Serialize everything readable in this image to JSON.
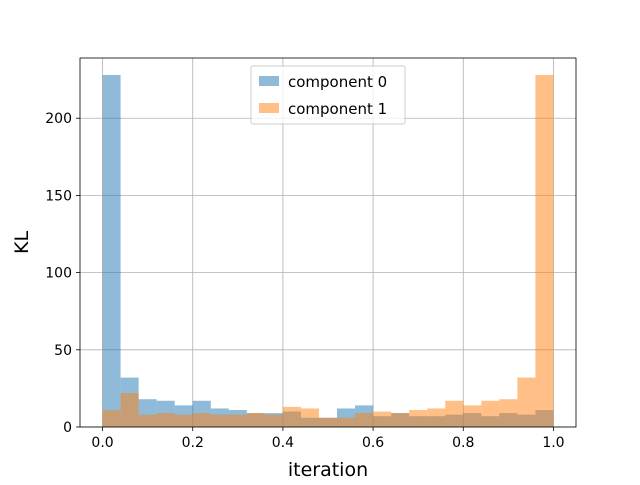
{
  "chart_data": {
    "type": "bar",
    "subtype": "overlapping histogram",
    "title": "",
    "xlabel": "iteration",
    "ylabel": "KL",
    "xlim": [
      -0.05,
      1.05
    ],
    "ylim": [
      0,
      239
    ],
    "xticks": [
      {
        "value": 0.0,
        "label": "0.0"
      },
      {
        "value": 0.2,
        "label": "0.2"
      },
      {
        "value": 0.4,
        "label": "0.4"
      },
      {
        "value": 0.6,
        "label": "0.6"
      },
      {
        "value": 0.8,
        "label": "0.8"
      },
      {
        "value": 1.0,
        "label": "1.0"
      }
    ],
    "yticks": [
      {
        "value": 0,
        "label": "0"
      },
      {
        "value": 50,
        "label": "50"
      },
      {
        "value": 100,
        "label": "100"
      },
      {
        "value": 150,
        "label": "150"
      },
      {
        "value": 200,
        "label": "200"
      }
    ],
    "grid": true,
    "legend_position": "top-center",
    "bin_edges": [
      0.0,
      0.04,
      0.08,
      0.12,
      0.16,
      0.2,
      0.24,
      0.28,
      0.32,
      0.36,
      0.4,
      0.44,
      0.48,
      0.52,
      0.56,
      0.6,
      0.64,
      0.68,
      0.72,
      0.76,
      0.8,
      0.84,
      0.88,
      0.92,
      0.96,
      1.0
    ],
    "series": [
      {
        "name": "component 0",
        "color": "#1f77b4",
        "opacity": 0.5,
        "values": [
          228,
          32,
          18,
          17,
          14,
          17,
          12,
          11,
          9,
          9,
          10,
          6,
          6,
          12,
          14,
          7,
          9,
          7,
          7,
          8,
          9,
          7,
          9,
          8,
          11
        ]
      },
      {
        "name": "component 1",
        "color": "#ff7f0e",
        "opacity": 0.5,
        "values": [
          11,
          22,
          8,
          9,
          8,
          9,
          8,
          8,
          9,
          8,
          13,
          12,
          6,
          6,
          9,
          10,
          9,
          11,
          12,
          17,
          14,
          17,
          18,
          32,
          228
        ]
      }
    ],
    "series_alignment_note": ""
  }
}
